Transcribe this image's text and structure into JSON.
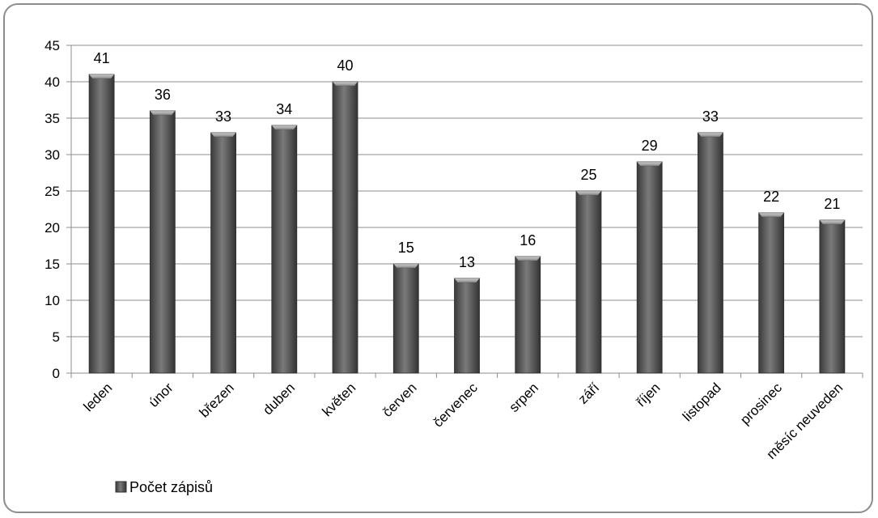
{
  "chart_data": {
    "type": "bar",
    "categories": [
      "leden",
      "únor",
      "březen",
      "duben",
      "květen",
      "červen",
      "červenec",
      "srpen",
      "září",
      "říjen",
      "listopad",
      "prosinec",
      "měsíc neuveden"
    ],
    "series": [
      {
        "name": "Počet zápisů",
        "values": [
          41,
          36,
          33,
          34,
          40,
          15,
          13,
          16,
          25,
          29,
          33,
          22,
          21
        ]
      }
    ],
    "yticks": [
      0,
      5,
      10,
      15,
      20,
      25,
      30,
      35,
      40,
      45
    ],
    "ylim": [
      0,
      45
    ],
    "title": "",
    "xlabel": "",
    "ylabel": "",
    "grid": "horizontal",
    "legend_position": "bottom-left",
    "bar_color": "#595959"
  }
}
